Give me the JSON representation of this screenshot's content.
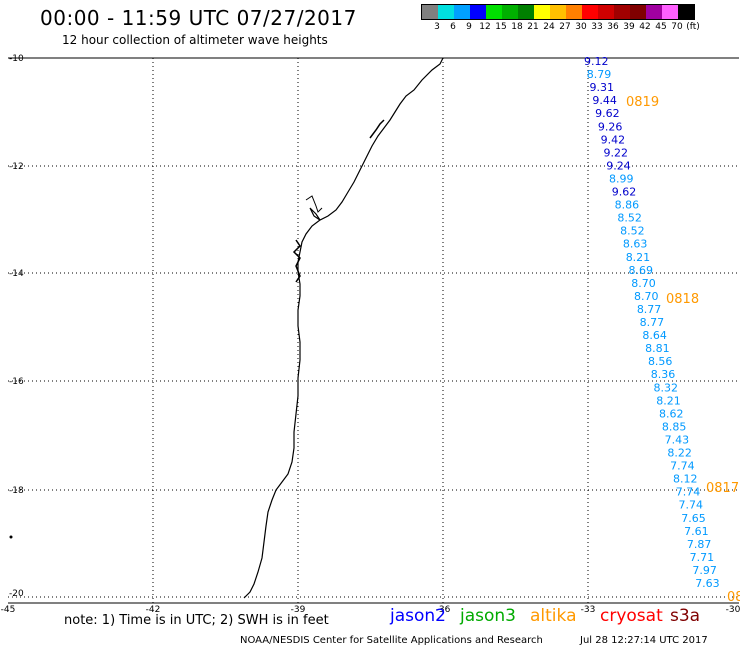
{
  "header": {
    "title": "00:00 - 11:59 UTC 07/27/2017",
    "subtitle": "12 hour collection of altimeter wave heights"
  },
  "color_scale": {
    "labels": [
      "3",
      "6",
      "9",
      "12",
      "15",
      "18",
      "21",
      "24",
      "27",
      "30",
      "33",
      "36",
      "39",
      "42",
      "45",
      "70",
      "(ft)"
    ],
    "colors": [
      "#808080",
      "#00e0e0",
      "#00a0ff",
      "#0000ff",
      "#00e000",
      "#00b000",
      "#008000",
      "#ffff00",
      "#ffc000",
      "#ff8000",
      "#ff0000",
      "#d00000",
      "#a00000",
      "#800000",
      "#a000a0",
      "#ff60ff",
      "#000000"
    ]
  },
  "map": {
    "lat_labels": [
      "-10",
      "-12",
      "-14",
      "-16",
      "-18",
      "-20"
    ],
    "lon_labels": [
      "-45",
      "-42",
      "-39",
      "-36",
      "-33",
      "-30"
    ],
    "track_labels": [
      {
        "text": "0819",
        "color": "#ff9900"
      },
      {
        "text": "0818",
        "color": "#ff9900"
      },
      {
        "text": "0817",
        "color": "#ff9900"
      },
      {
        "text": "08",
        "color": "#ff9900"
      }
    ],
    "observations": [
      {
        "value": "9.12",
        "color": "#0000cc"
      },
      {
        "value": "8.79",
        "color": "#0099ff"
      },
      {
        "value": "9.31",
        "color": "#0000cc"
      },
      {
        "value": "9.44",
        "color": "#0000cc"
      },
      {
        "value": "9.62",
        "color": "#0000cc"
      },
      {
        "value": "9.26",
        "color": "#0000cc"
      },
      {
        "value": "9.42",
        "color": "#0000cc"
      },
      {
        "value": "9.22",
        "color": "#0000cc"
      },
      {
        "value": "9.24",
        "color": "#0000cc"
      },
      {
        "value": "8.99",
        "color": "#0099ff"
      },
      {
        "value": "9.62",
        "color": "#0000cc"
      },
      {
        "value": "8.86",
        "color": "#0099ff"
      },
      {
        "value": "8.52",
        "color": "#0099ff"
      },
      {
        "value": "8.52",
        "color": "#0099ff"
      },
      {
        "value": "8.63",
        "color": "#0099ff"
      },
      {
        "value": "8.21",
        "color": "#0099ff"
      },
      {
        "value": "8.69",
        "color": "#0099ff"
      },
      {
        "value": "8.70",
        "color": "#0099ff"
      },
      {
        "value": "8.70",
        "color": "#0099ff"
      },
      {
        "value": "8.77",
        "color": "#0099ff"
      },
      {
        "value": "8.77",
        "color": "#0099ff"
      },
      {
        "value": "8.64",
        "color": "#0099ff"
      },
      {
        "value": "8.81",
        "color": "#0099ff"
      },
      {
        "value": "8.56",
        "color": "#0099ff"
      },
      {
        "value": "8.36",
        "color": "#0099ff"
      },
      {
        "value": "8.32",
        "color": "#0099ff"
      },
      {
        "value": "8.21",
        "color": "#0099ff"
      },
      {
        "value": "8.62",
        "color": "#0099ff"
      },
      {
        "value": "8.85",
        "color": "#0099ff"
      },
      {
        "value": "7.43",
        "color": "#0099ff"
      },
      {
        "value": "8.22",
        "color": "#0099ff"
      },
      {
        "value": "7.74",
        "color": "#0099ff"
      },
      {
        "value": "8.12",
        "color": "#0099ff"
      },
      {
        "value": "7.74",
        "color": "#0099ff"
      },
      {
        "value": "7.74",
        "color": "#0099ff"
      },
      {
        "value": "7.65",
        "color": "#0099ff"
      },
      {
        "value": "7.61",
        "color": "#0099ff"
      },
      {
        "value": "7.87",
        "color": "#0099ff"
      },
      {
        "value": "7.71",
        "color": "#0099ff"
      },
      {
        "value": "7.97",
        "color": "#0099ff"
      },
      {
        "value": "7.63",
        "color": "#0099ff"
      }
    ]
  },
  "note": "note: 1) Time is in UTC; 2) SWH is in feet",
  "satellites": [
    {
      "name": "jason2",
      "color": "#0000ff"
    },
    {
      "name": "jason3",
      "color": "#00aa00"
    },
    {
      "name": "altika",
      "color": "#ff9900"
    },
    {
      "name": "cryosat",
      "color": "#ff0000"
    },
    {
      "name": "s3a",
      "color": "#800000"
    }
  ],
  "footer": "NOAA/NESDIS Center for Satellite Applications and Research",
  "timestamp": "Jul 28 12:27:14 UTC 2017"
}
